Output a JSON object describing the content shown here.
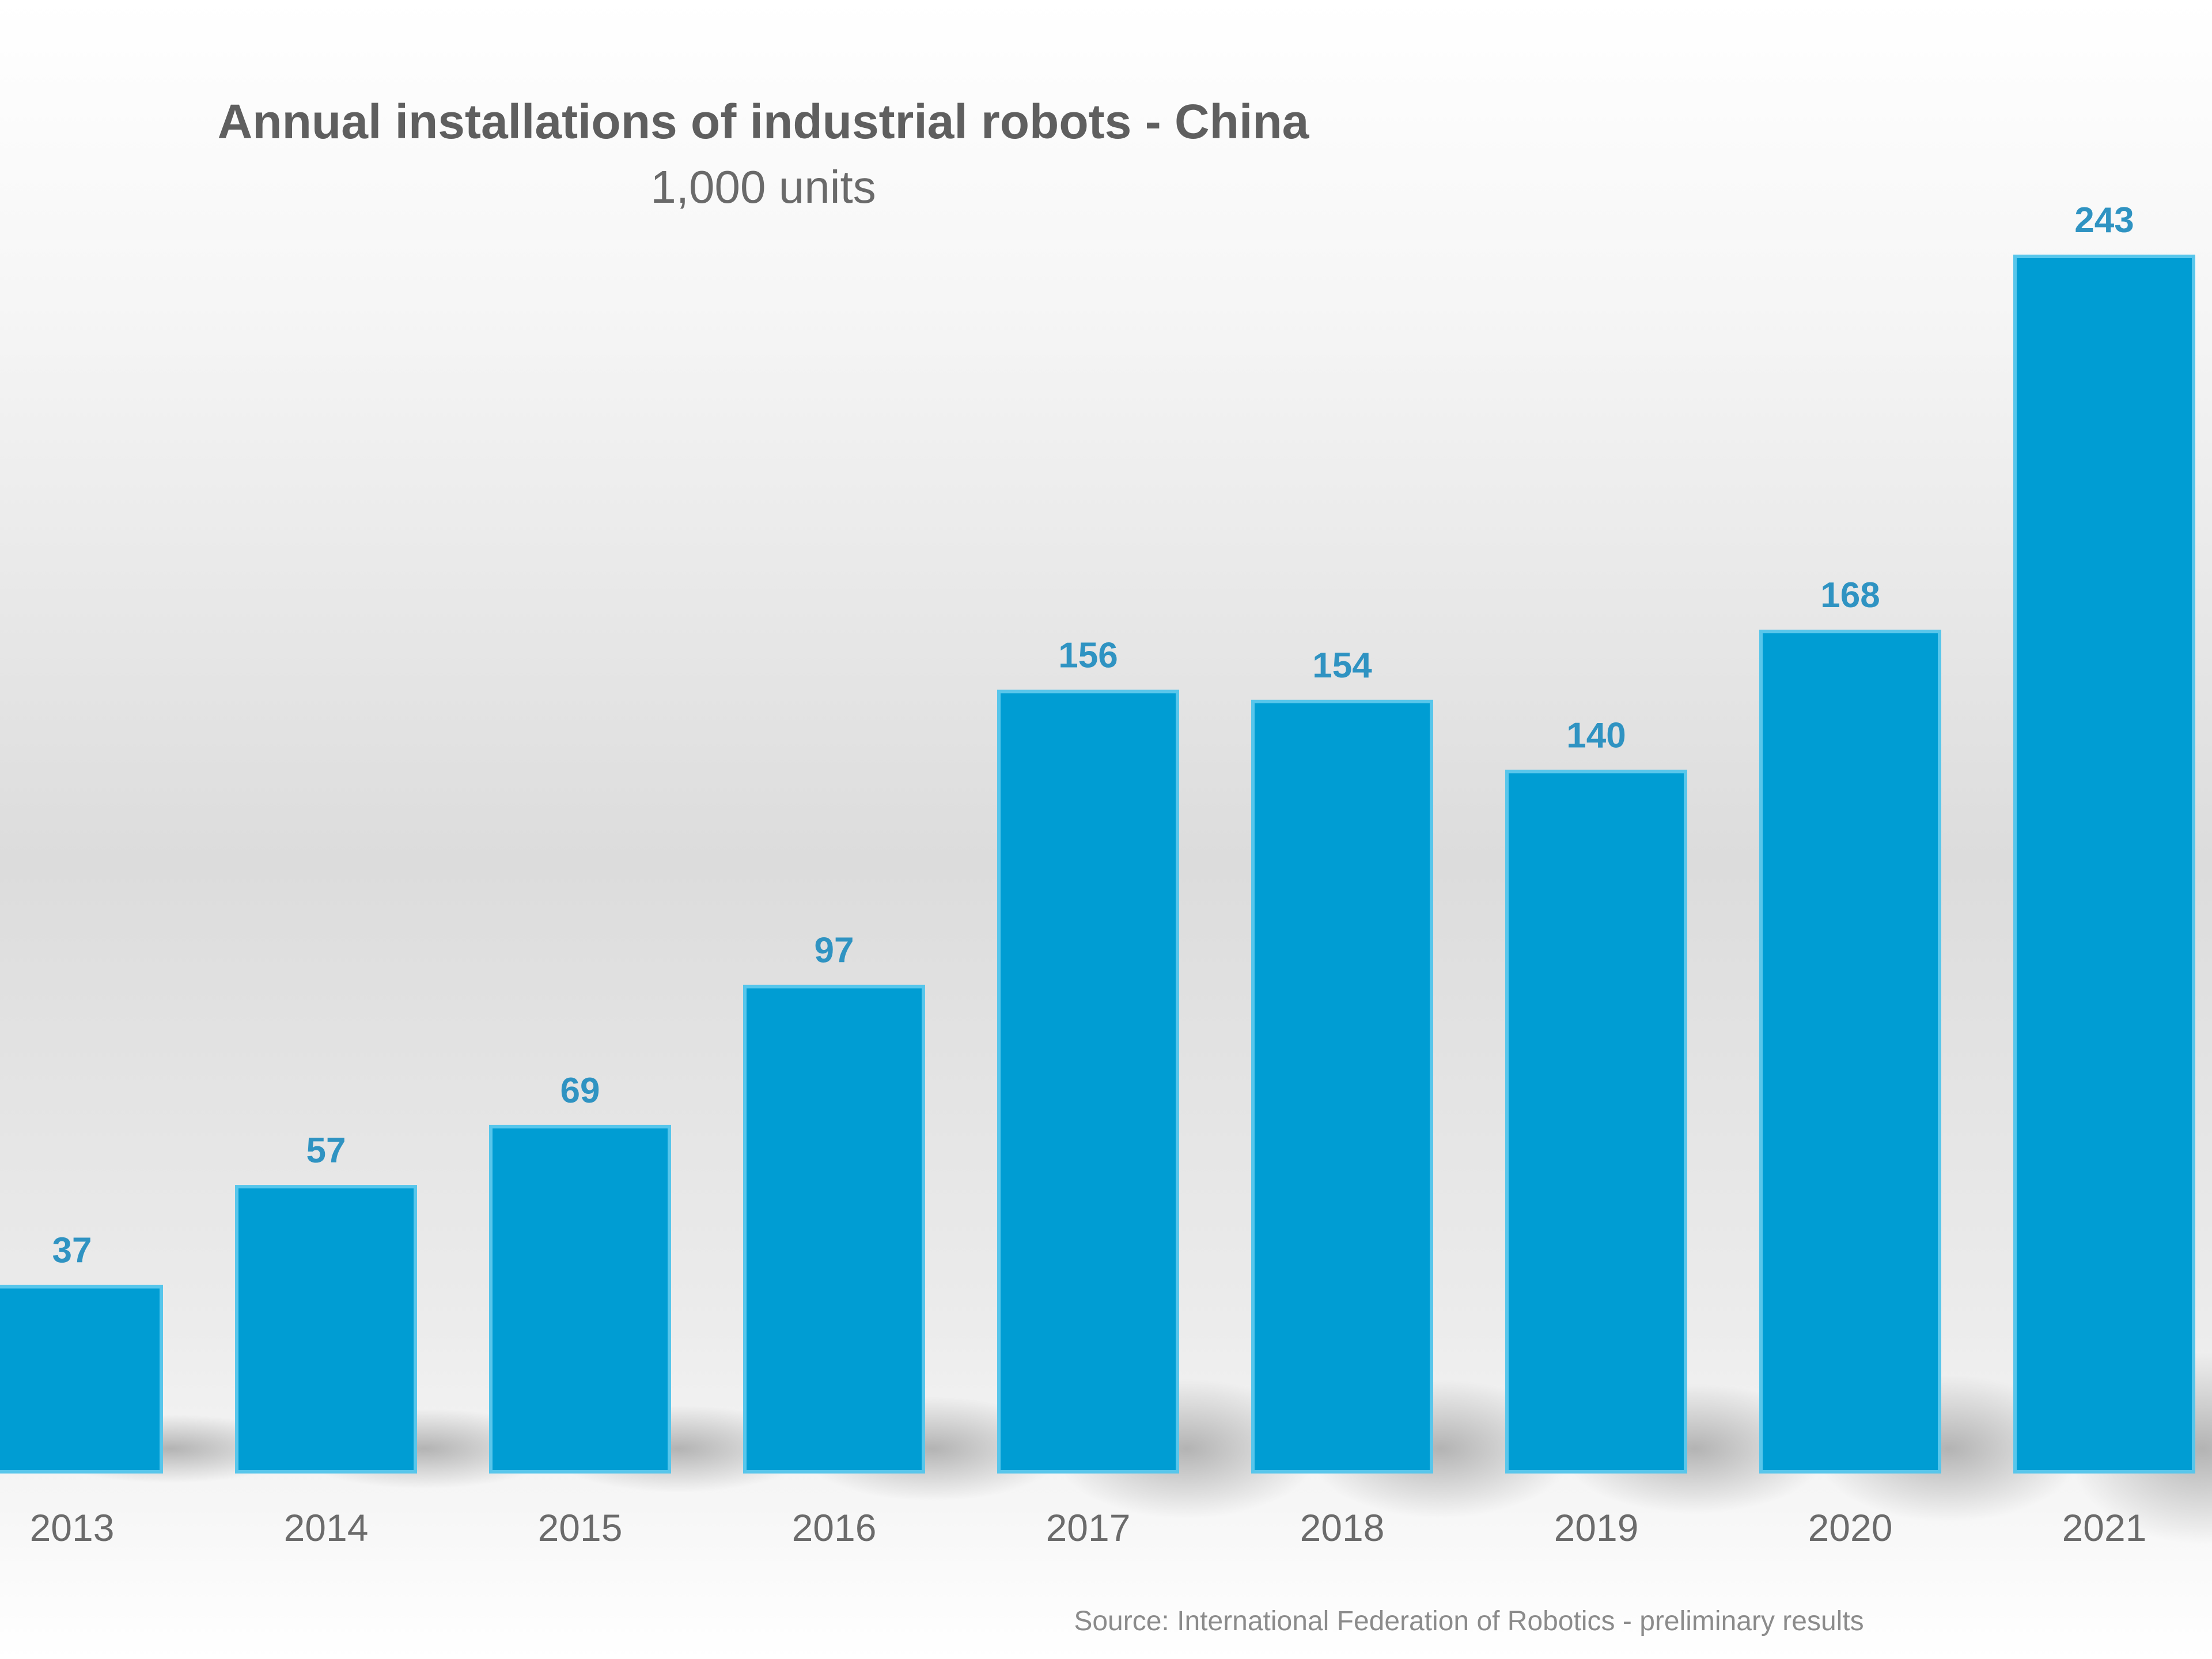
{
  "chart_data": {
    "type": "bar",
    "title": "Annual installations of industrial robots - China",
    "subtitle": "1,000 units",
    "categories": [
      "2013",
      "2014",
      "2015",
      "2016",
      "2017",
      "2018",
      "2019",
      "2020",
      "2021"
    ],
    "values": [
      37,
      57,
      69,
      97,
      156,
      154,
      140,
      168,
      243
    ],
    "value_labels": [
      "37",
      "57",
      "69",
      "97",
      "156",
      "154",
      "140",
      "168",
      "243"
    ],
    "ylim": [
      0,
      243
    ],
    "grid": false,
    "legend": "none",
    "source": "Source: International Federation of Robotics - preliminary results",
    "colors": {
      "bar": "#009dd3",
      "bar_outline": "#58c6eb",
      "value_label": "#2f93c2",
      "text": "#6b6b6b",
      "title": "#5f5f5f"
    }
  }
}
